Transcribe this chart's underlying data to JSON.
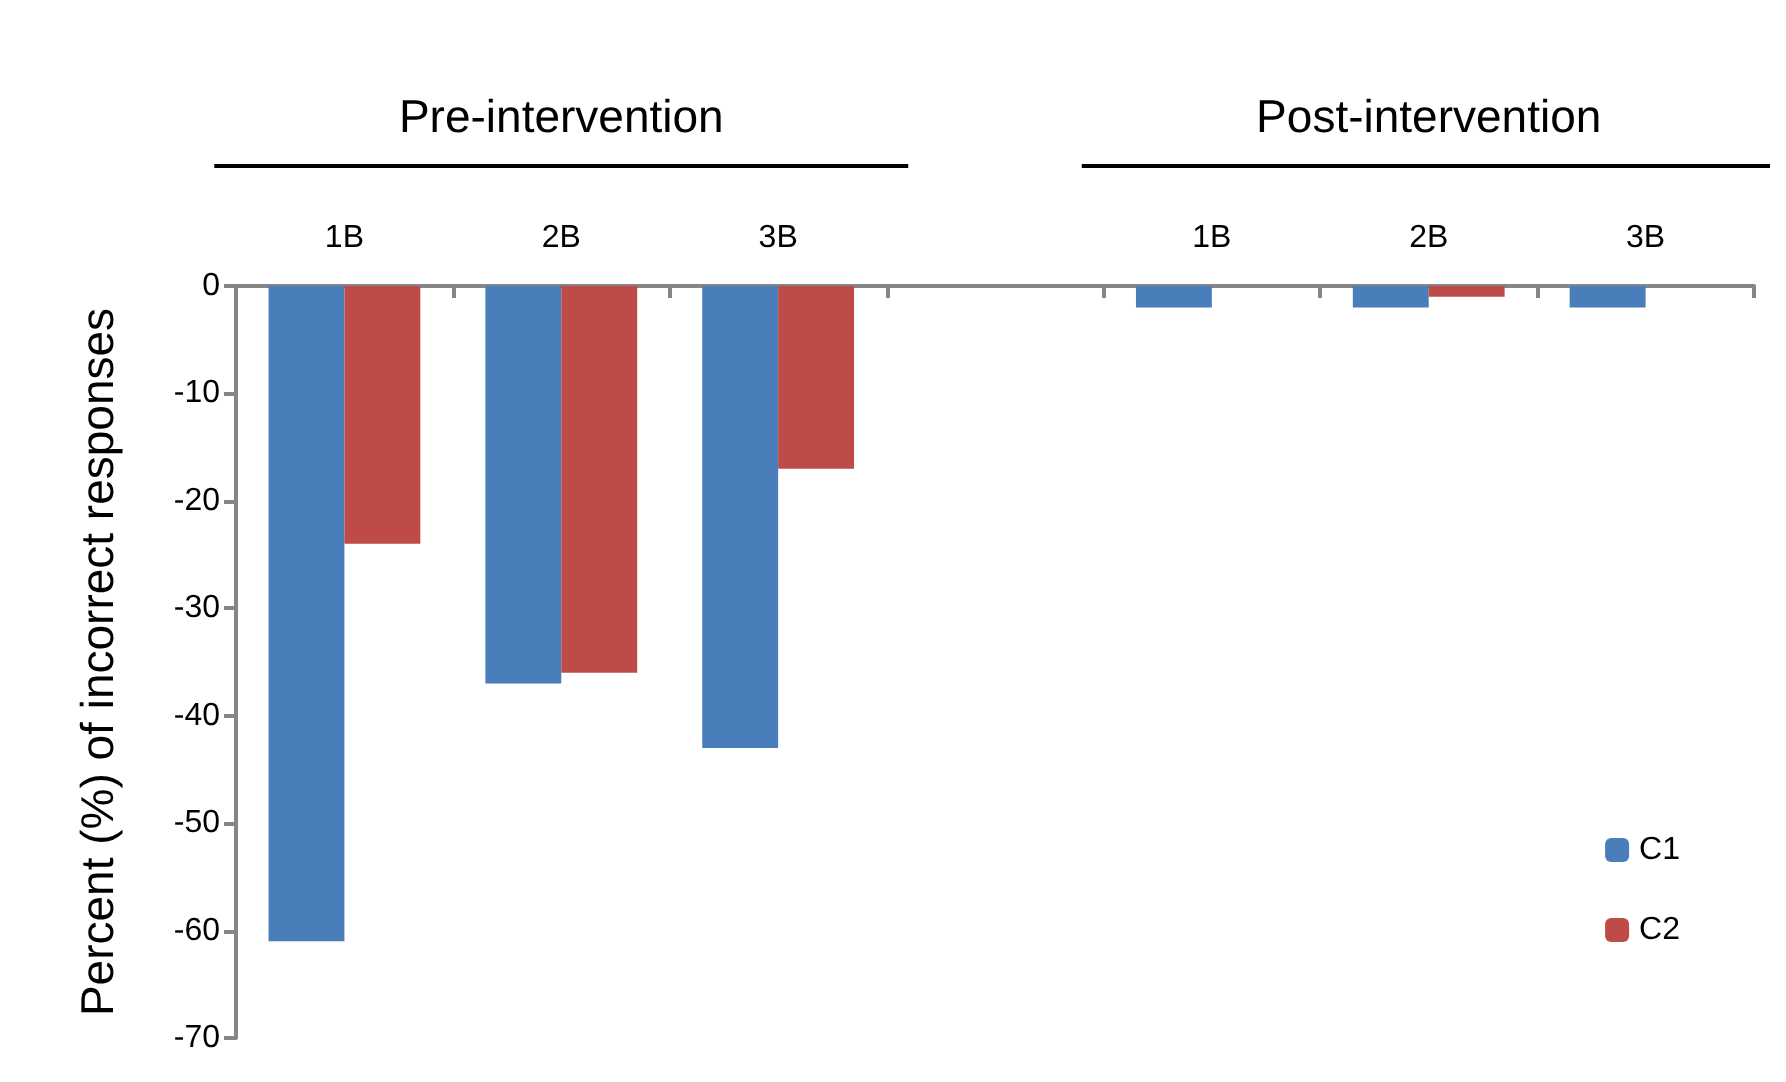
{
  "chart_data": {
    "type": "bar",
    "ylabel": "Percent (%) of incorrect responses",
    "annotations": [
      "Pre-intervention",
      "Post-intervention"
    ],
    "categories": [
      "1B",
      "2B",
      "3B",
      null,
      "1B",
      "2B",
      "3B"
    ],
    "series": [
      {
        "name": "C1",
        "color": "#4a7ebb",
        "values": [
          -61,
          -37,
          -43,
          null,
          -2,
          -2,
          -2
        ]
      },
      {
        "name": "C2",
        "color": "#be4b48",
        "values": [
          -24,
          -36,
          -17,
          null,
          0,
          -1,
          0
        ]
      }
    ],
    "ylim": [
      -70,
      0
    ],
    "yticks": [
      -70,
      -60,
      -50,
      -40,
      -30,
      -20,
      -10,
      0
    ],
    "grid": false,
    "legend": "bottom right"
  }
}
